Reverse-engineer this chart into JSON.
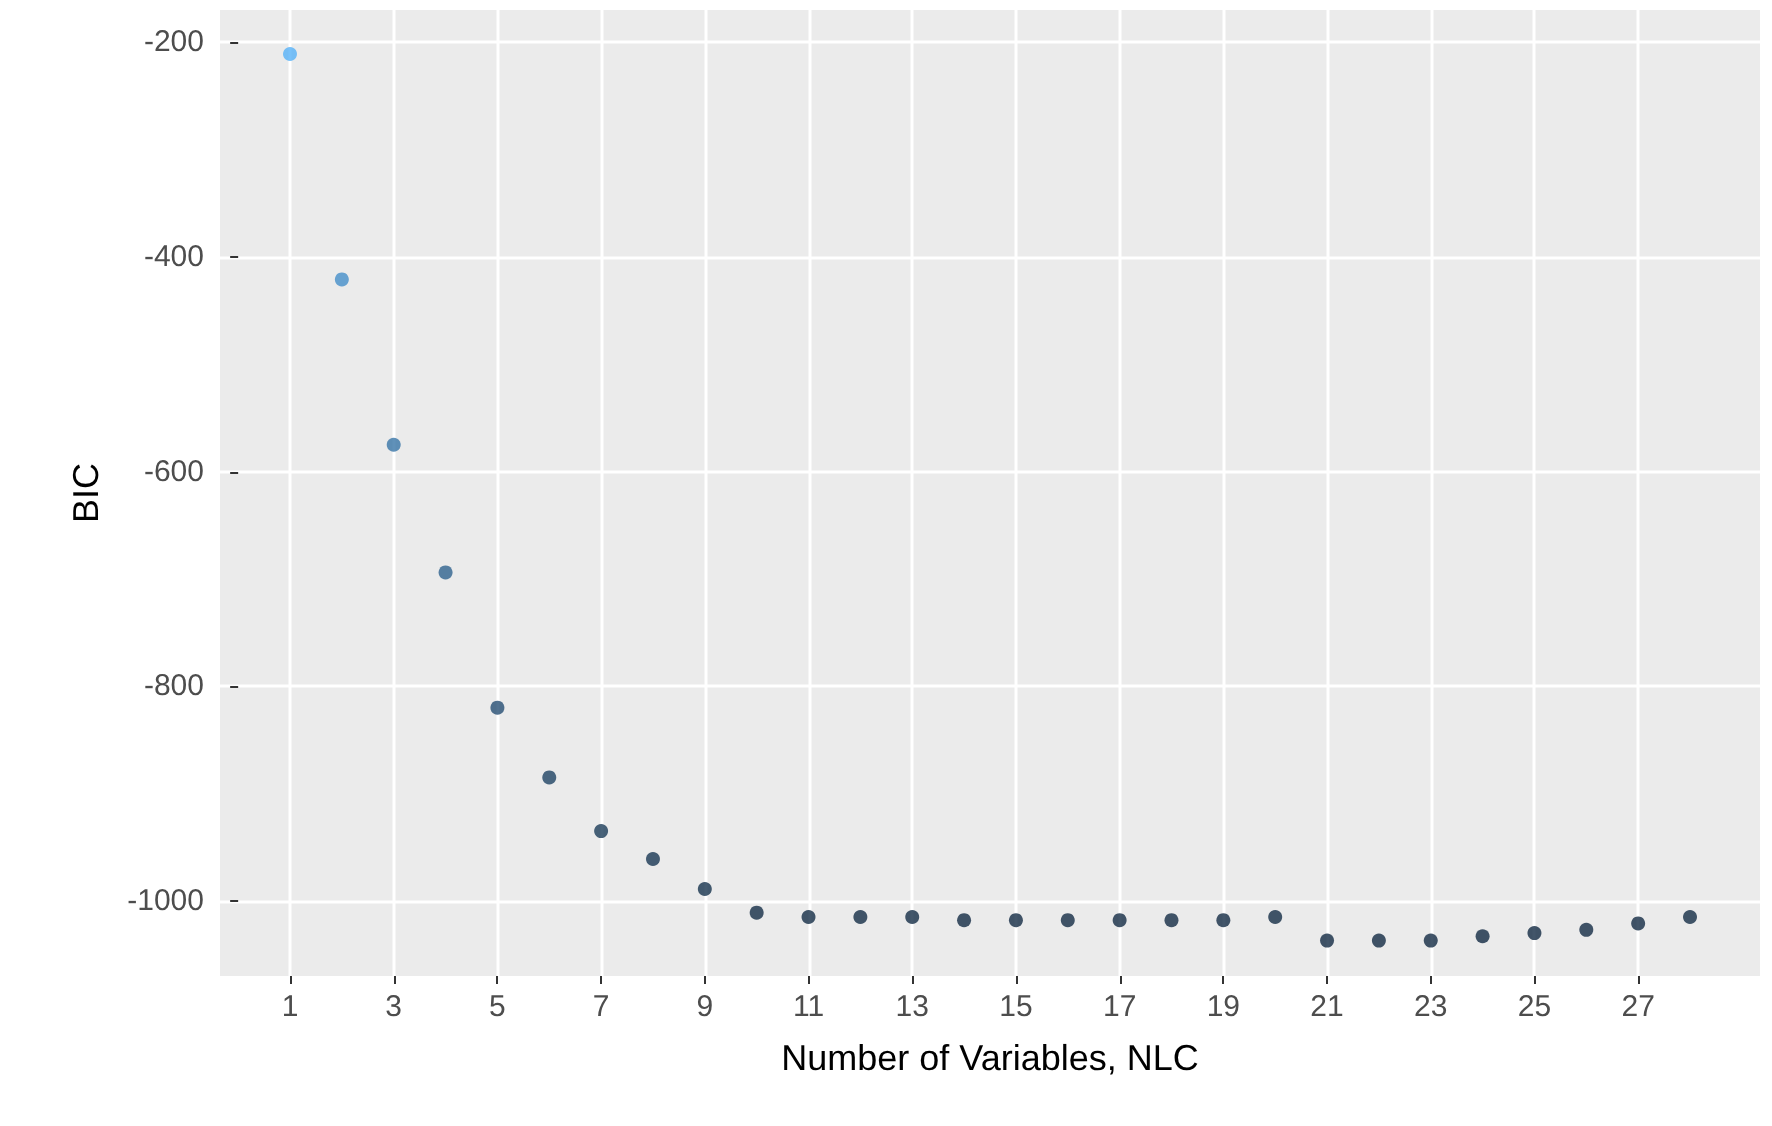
{
  "chart_data": {
    "type": "scatter",
    "xlabel": "Number of Variables, NLC",
    "ylabel": "BIC",
    "x": [
      1,
      2,
      3,
      4,
      5,
      6,
      7,
      8,
      9,
      10,
      11,
      12,
      13,
      14,
      15,
      16,
      17,
      18,
      19,
      20,
      21,
      22,
      23,
      24,
      25,
      26,
      27,
      28
    ],
    "values": [
      -211,
      -421,
      -575,
      -694,
      -820,
      -885,
      -935,
      -961,
      -989,
      -1011,
      -1015,
      -1015,
      -1015,
      -1018,
      -1018,
      -1018,
      -1018,
      -1018,
      -1018,
      -1015,
      -1037,
      -1037,
      -1037,
      -1033,
      -1030,
      -1027,
      -1021,
      -1015
    ],
    "colors": [
      "#56B1F7",
      "#458FC9",
      "#3876A7",
      "#2F638E",
      "#254E73",
      "#1F4464",
      "#1B3C59",
      "#193754",
      "#17334D",
      "#142D46",
      "#142D46",
      "#142D46",
      "#142D46",
      "#142C45",
      "#142C45",
      "#142C45",
      "#142C45",
      "#142C45",
      "#142C45",
      "#142D46",
      "#132B43",
      "#132B43",
      "#132B43",
      "#132B44",
      "#132B44",
      "#142C45",
      "#142C45",
      "#142D46"
    ],
    "xlim": [
      -0.35,
      29.35
    ],
    "xticks": [
      1,
      3,
      5,
      7,
      9,
      11,
      13,
      15,
      17,
      19,
      21,
      23,
      25,
      27
    ],
    "ylim": [
      -1070,
      -170
    ],
    "yticks": [
      -1000,
      -800,
      -600,
      -400,
      -200
    ],
    "grid": true,
    "marker": "circle"
  }
}
